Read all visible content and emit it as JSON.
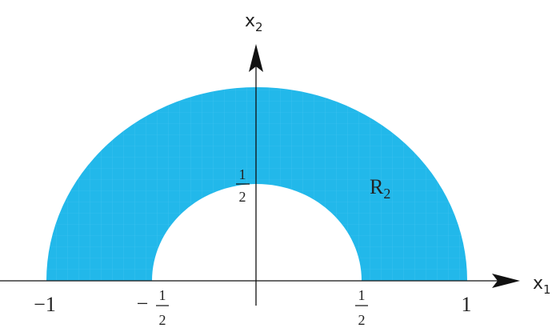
{
  "diagram": {
    "region_color": "#22b8ea",
    "axis_color": "#111111",
    "axes": {
      "x_label": "x",
      "x_sub": "1",
      "y_label": "x",
      "y_sub": "2"
    },
    "region_label": "R",
    "region_sub": "2",
    "outer_radius": 1,
    "inner_radius": 0.5,
    "ticks": {
      "minus_one": "−1",
      "minus_half_sign": "−",
      "half_num": "1",
      "half_den": "2",
      "one": "1"
    }
  }
}
